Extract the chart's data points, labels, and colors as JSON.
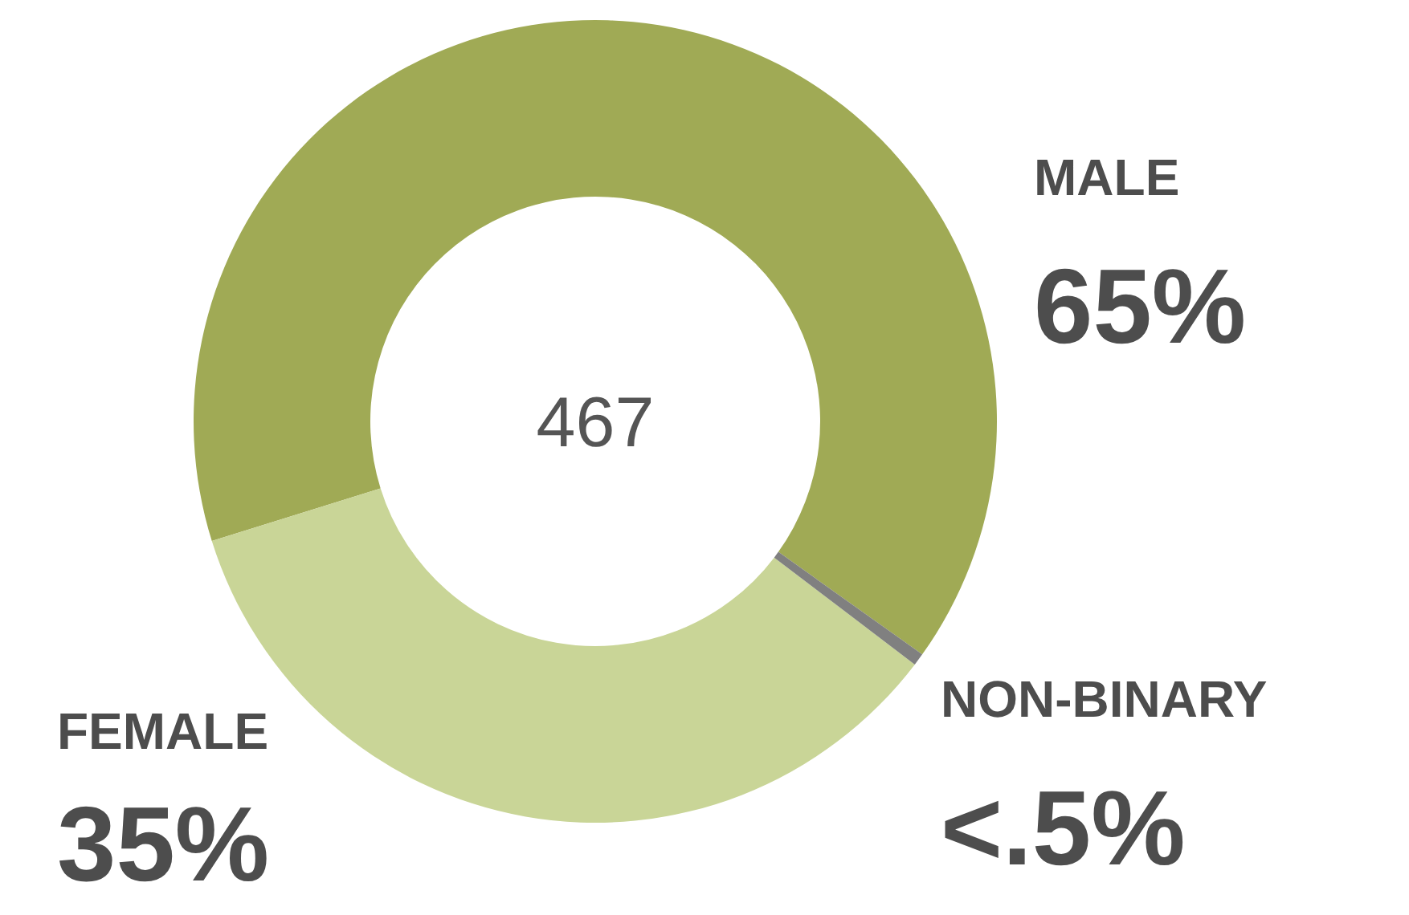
{
  "chart_data": {
    "type": "donut",
    "categories": [
      "MALE",
      "FEMALE",
      "NON-BINARY"
    ],
    "values": [
      65,
      35,
      0.5
    ],
    "colors": [
      "#a0aa55",
      "#c9d597",
      "#808080"
    ],
    "value_labels": [
      "65%",
      "35%",
      "<.5%"
    ],
    "annotations": [
      "467"
    ]
  }
}
